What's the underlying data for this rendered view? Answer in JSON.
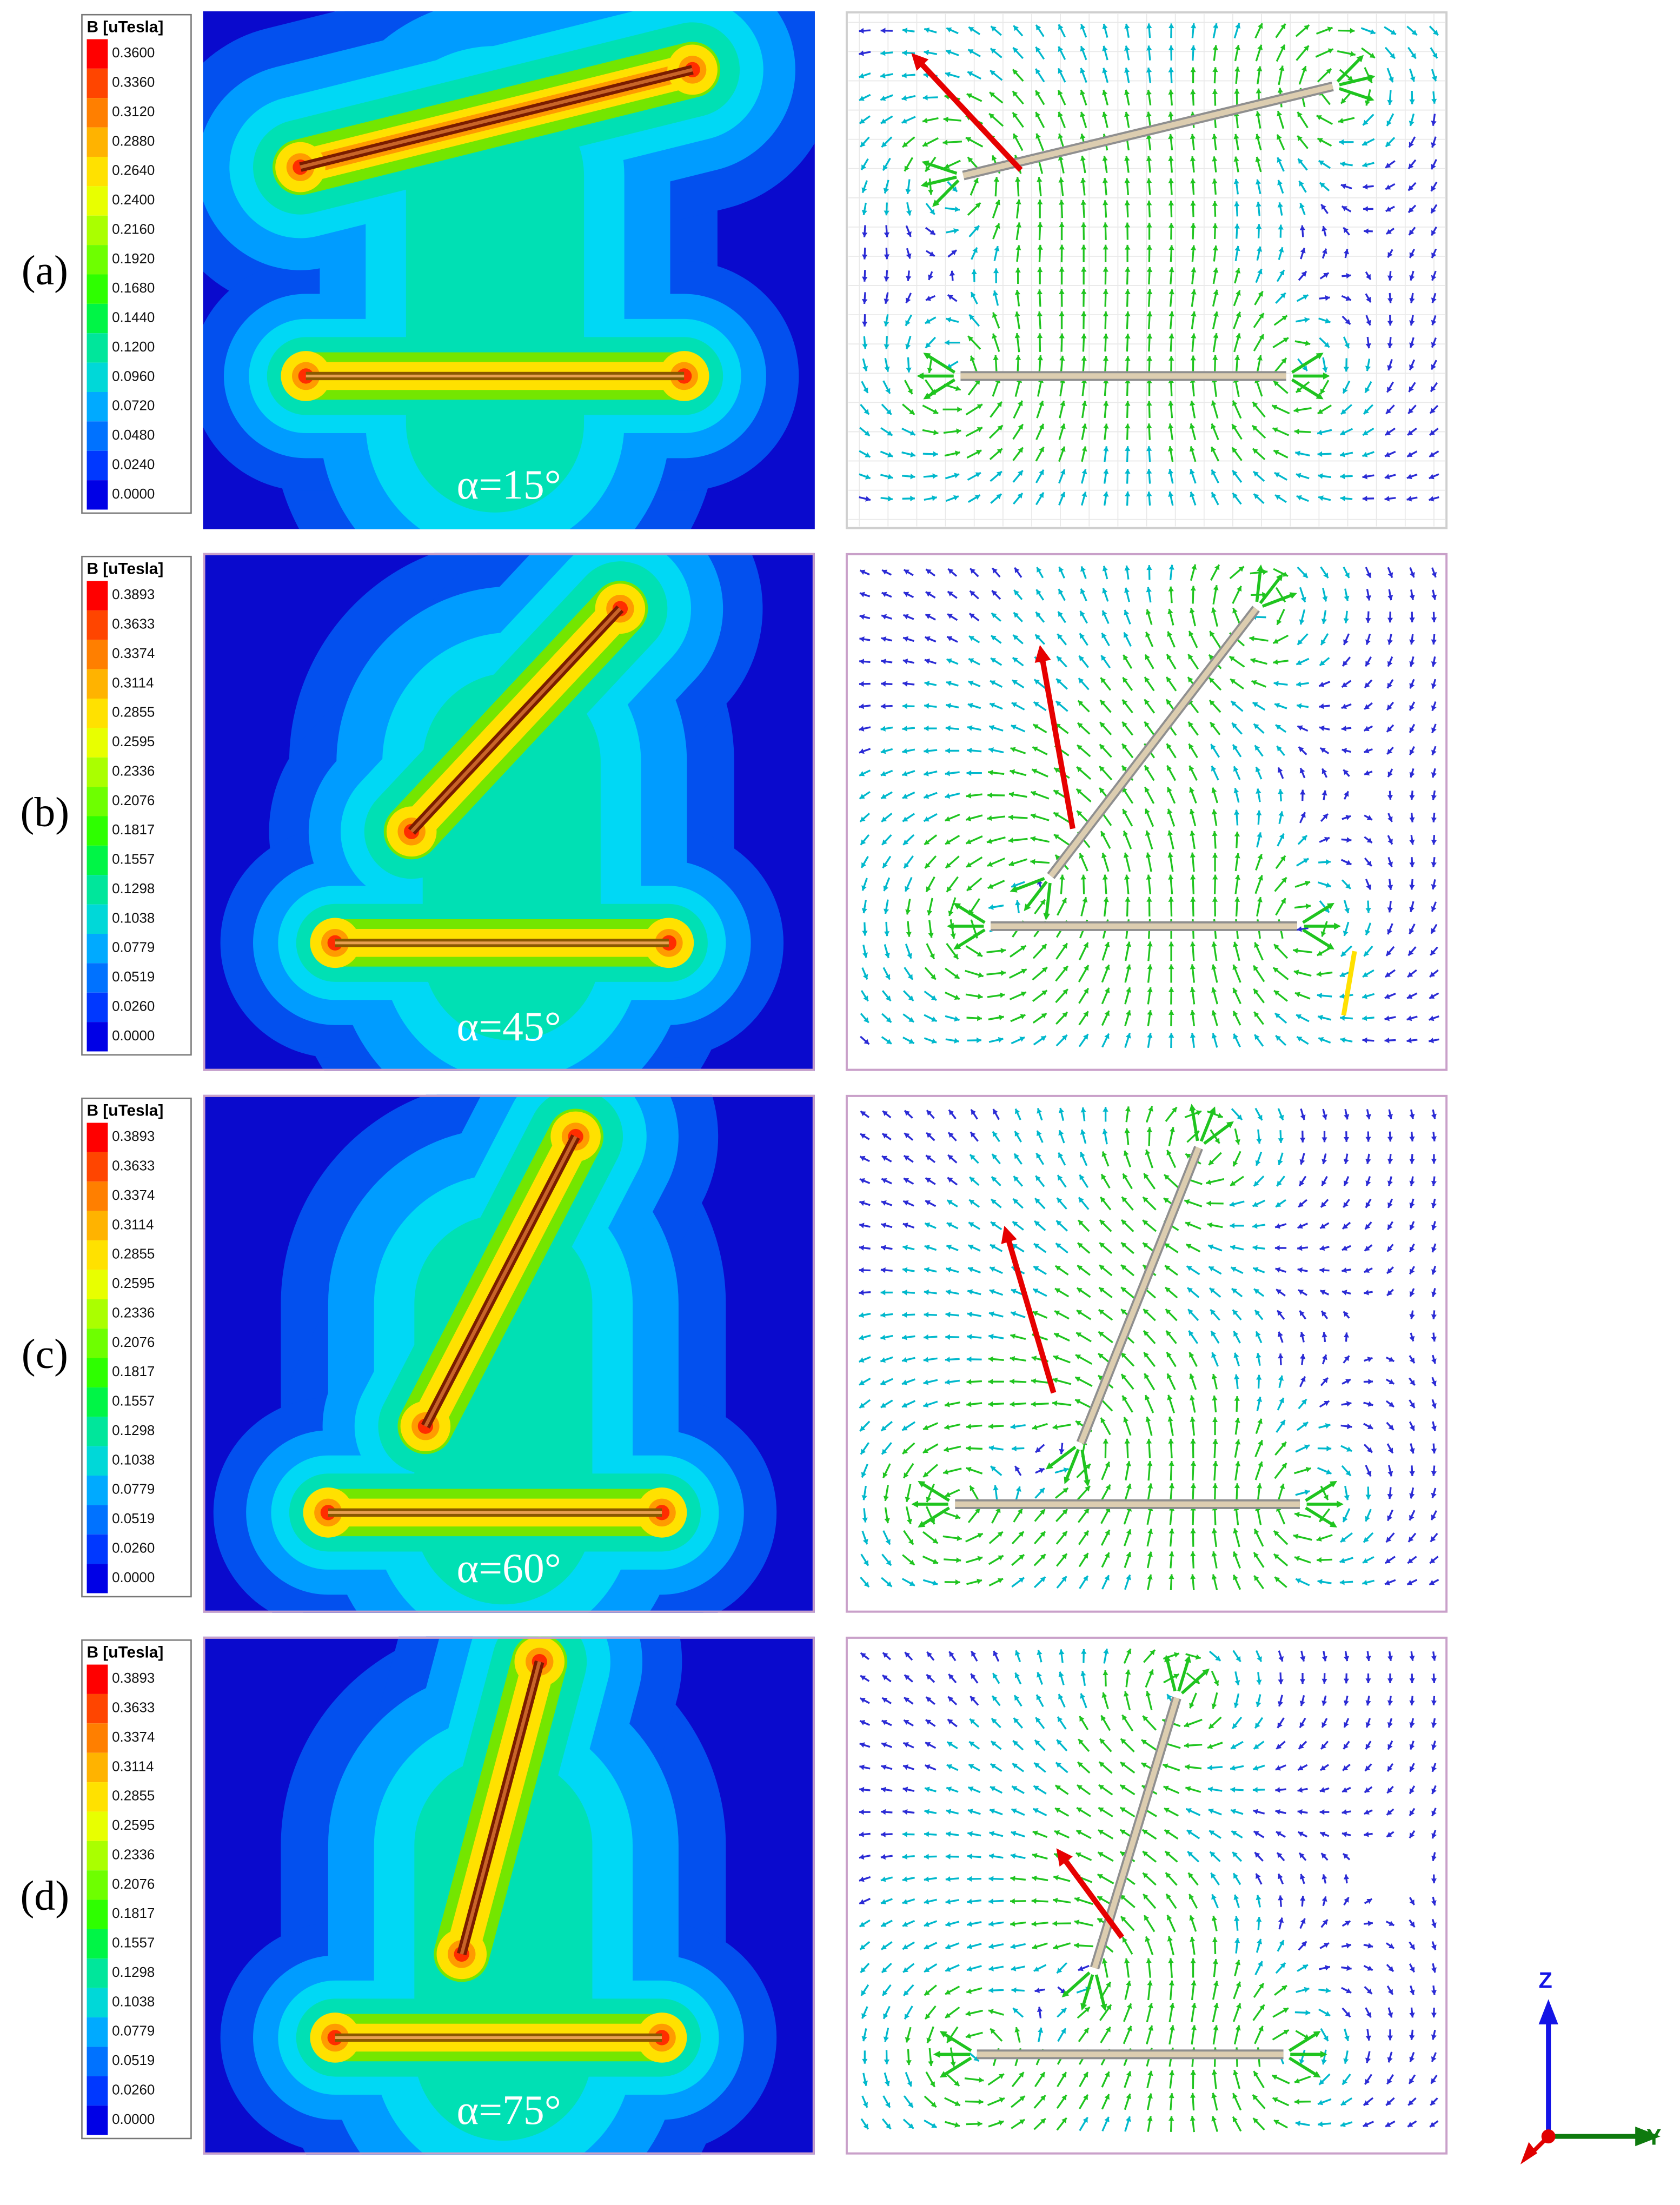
{
  "figure": {
    "rows": [
      {
        "label": "(a)",
        "alpha_label": "α=15°",
        "alpha_deg": 15,
        "legend_title": "B [uTesla]",
        "legend_ticks": [
          "0.3600",
          "0.3360",
          "0.3120",
          "0.2880",
          "0.2640",
          "0.2400",
          "0.2160",
          "0.1920",
          "0.1680",
          "0.1440",
          "0.1200",
          "0.0960",
          "0.0720",
          "0.0480",
          "0.0240",
          "0.0000"
        ]
      },
      {
        "label": "(b)",
        "alpha_label": "α=45°",
        "alpha_deg": 45,
        "legend_title": "B [uTesla]",
        "legend_ticks": [
          "0.3893",
          "0.3633",
          "0.3374",
          "0.3114",
          "0.2855",
          "0.2595",
          "0.2336",
          "0.2076",
          "0.1817",
          "0.1557",
          "0.1298",
          "0.1038",
          "0.0779",
          "0.0519",
          "0.0260",
          "0.0000"
        ]
      },
      {
        "label": "(c)",
        "alpha_label": "α=60°",
        "alpha_deg": 60,
        "legend_title": "B [uTesla]",
        "legend_ticks": [
          "0.3893",
          "0.3633",
          "0.3374",
          "0.3114",
          "0.2855",
          "0.2595",
          "0.2336",
          "0.2076",
          "0.1817",
          "0.1557",
          "0.1298",
          "0.1038",
          "0.0779",
          "0.0519",
          "0.0260",
          "0.0000"
        ]
      },
      {
        "label": "(d)",
        "alpha_label": "α=75°",
        "alpha_deg": 75,
        "legend_title": "B [uTesla]",
        "legend_ticks": [
          "0.3893",
          "0.3633",
          "0.3374",
          "0.3114",
          "0.2855",
          "0.2595",
          "0.2336",
          "0.2076",
          "0.1817",
          "0.1557",
          "0.1298",
          "0.1038",
          "0.0779",
          "0.0519",
          "0.0260",
          "0.0000"
        ]
      }
    ],
    "legend_colors": [
      "#FF0000",
      "#FF4500",
      "#FF7F00",
      "#FFB300",
      "#FFE100",
      "#E8FF00",
      "#AAFF00",
      "#6EFF00",
      "#2EFF00",
      "#00F546",
      "#00E69B",
      "#00D8D8",
      "#00AAFF",
      "#0072FF",
      "#0038FF",
      "#0000E6"
    ],
    "triad": {
      "z_label": "Z",
      "y_label": "Y",
      "z_color": "#1414E6",
      "y_color": "#0E7A0E",
      "x_color": "#E00000"
    }
  },
  "chart_data": [
    {
      "panel": "a",
      "type": "heatmap",
      "subtype": "field-magnitude-contour",
      "legend_title": "B [uTesla]",
      "unit": "uTesla",
      "angle_deg": 15,
      "angle_label": "α=15°",
      "scale_min": 0.0,
      "scale_max": 0.36,
      "scale_ticks": [
        0.36,
        0.336,
        0.312,
        0.288,
        0.264,
        0.24,
        0.216,
        0.192,
        0.168,
        0.144,
        0.12,
        0.096,
        0.072,
        0.048,
        0.024,
        0.0
      ]
    },
    {
      "panel": "a",
      "type": "scatter",
      "subtype": "vector-field",
      "angle_deg": 15,
      "angle_label": "α=15°"
    },
    {
      "panel": "b",
      "type": "heatmap",
      "subtype": "field-magnitude-contour",
      "legend_title": "B [uTesla]",
      "unit": "uTesla",
      "angle_deg": 45,
      "angle_label": "α=45°",
      "scale_min": 0.0,
      "scale_max": 0.3893,
      "scale_ticks": [
        0.3893,
        0.3633,
        0.3374,
        0.3114,
        0.2855,
        0.2595,
        0.2336,
        0.2076,
        0.1817,
        0.1557,
        0.1298,
        0.1038,
        0.0779,
        0.0519,
        0.026,
        0.0
      ]
    },
    {
      "panel": "b",
      "type": "scatter",
      "subtype": "vector-field",
      "angle_deg": 45,
      "angle_label": "α=45°"
    },
    {
      "panel": "c",
      "type": "heatmap",
      "subtype": "field-magnitude-contour",
      "legend_title": "B [uTesla]",
      "unit": "uTesla",
      "angle_deg": 60,
      "angle_label": "α=60°",
      "scale_min": 0.0,
      "scale_max": 0.3893,
      "scale_ticks": [
        0.3893,
        0.3633,
        0.3374,
        0.3114,
        0.2855,
        0.2595,
        0.2336,
        0.2076,
        0.1817,
        0.1557,
        0.1298,
        0.1038,
        0.0779,
        0.0519,
        0.026,
        0.0
      ]
    },
    {
      "panel": "c",
      "type": "scatter",
      "subtype": "vector-field",
      "angle_deg": 60,
      "angle_label": "α=60°"
    },
    {
      "panel": "d",
      "type": "heatmap",
      "subtype": "field-magnitude-contour",
      "legend_title": "B [uTesla]",
      "unit": "uTesla",
      "angle_deg": 75,
      "angle_label": "α=75°",
      "scale_min": 0.0,
      "scale_max": 0.3893,
      "scale_ticks": [
        0.3893,
        0.3633,
        0.3374,
        0.3114,
        0.2855,
        0.2595,
        0.2336,
        0.2076,
        0.1817,
        0.1557,
        0.1298,
        0.1038,
        0.0779,
        0.0519,
        0.026,
        0.0
      ]
    },
    {
      "panel": "d",
      "type": "scatter",
      "subtype": "vector-field",
      "angle_deg": 75,
      "angle_label": "α=75°"
    }
  ]
}
